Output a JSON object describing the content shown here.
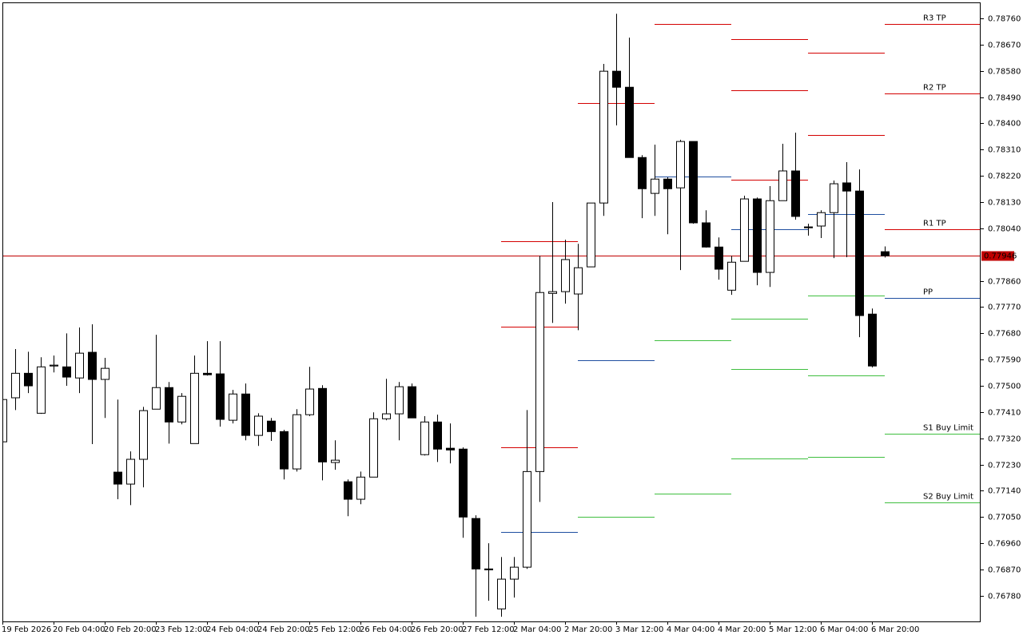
{
  "chart_data": {
    "type": "candlestick",
    "categories": [
      "19 Feb 2026",
      null,
      null,
      null,
      "20 Feb 04:00",
      null,
      null,
      null,
      "20 Feb 20:00",
      null,
      null,
      null,
      "23 Feb 12:00",
      null,
      null,
      null,
      "24 Feb 04:00",
      null,
      null,
      null,
      "24 Feb 20:00",
      null,
      null,
      null,
      "25 Feb 12:00",
      null,
      null,
      null,
      "26 Feb 04:00",
      null,
      null,
      null,
      "26 Feb 20:00",
      null,
      null,
      null,
      "27 Feb 12:00",
      null,
      null,
      null,
      "2 Mar 04:00",
      null,
      null,
      null,
      "2 Mar 20:00",
      null,
      null,
      null,
      "3 Mar 12:00",
      null,
      null,
      null,
      "4 Mar 04:00",
      null,
      null,
      null,
      "4 Mar 20:00",
      null,
      null,
      null,
      "5 Mar 12:00",
      null,
      null,
      null,
      "6 Mar 04:00",
      null,
      null,
      null,
      "6 Mar 20:00",
      null
    ],
    "open": [
      0.77308,
      0.77459,
      0.77543,
      0.77406,
      0.77568,
      0.77565,
      0.77527,
      0.77615,
      0.77522,
      0.77204,
      0.77163,
      0.77248,
      0.7742,
      0.77494,
      0.77376,
      0.77302,
      0.77543,
      0.77541,
      0.77382,
      0.77472,
      0.7733,
      0.77379,
      0.77343,
      0.77215,
      0.77401,
      0.77491,
      0.77237,
      0.77171,
      0.77111,
      0.77187,
      0.77387,
      0.77404,
      0.77497,
      0.77264,
      0.77376,
      0.77286,
      0.77283,
      0.77045,
      0.76872,
      0.76735,
      0.76837,
      0.76878,
      0.77206,
      0.77817,
      0.77823,
      0.77815,
      0.77908,
      0.78127,
      0.78579,
      0.78524,
      0.78283,
      0.7816,
      0.78209,
      0.78179,
      0.78338,
      0.78059,
      0.77976,
      0.77828,
      0.77927,
      0.78141,
      0.77889,
      0.78135,
      0.78237,
      0.78045,
      0.78048,
      0.78094,
      0.78196,
      0.78168,
      0.77746,
      0.7796
    ],
    "high": [
      0.7748,
      0.77626,
      0.77617,
      0.77598,
      0.77604,
      0.7768,
      0.777,
      0.77711,
      0.77596,
      0.77453,
      0.77275,
      0.77428,
      0.77675,
      0.77513,
      0.77475,
      0.77604,
      0.77653,
      0.77653,
      0.77486,
      0.77508,
      0.77406,
      0.7739,
      0.77349,
      0.7742,
      0.77565,
      0.77502,
      0.77313,
      0.77179,
      0.77206,
      0.77409,
      0.77524,
      0.77513,
      0.77508,
      0.77396,
      0.77401,
      0.77371,
      0.77289,
      0.77056,
      0.7696,
      0.76913,
      0.76913,
      0.77417,
      0.77946,
      0.7813,
      0.78001,
      0.77987,
      0.78127,
      0.78604,
      0.78776,
      0.78694,
      0.78291,
      0.78327,
      0.78215,
      0.78344,
      0.78338,
      0.78102,
      0.78009,
      0.77946,
      0.78152,
      0.78146,
      0.78185,
      0.7833,
      0.78368,
      0.78056,
      0.78102,
      0.78204,
      0.78267,
      0.78242,
      0.77765,
      0.77978
    ],
    "low": [
      0.77275,
      0.77417,
      0.77475,
      0.77404,
      0.77546,
      0.775,
      0.77475,
      0.773,
      0.7739,
      0.77111,
      0.77091,
      0.77152,
      0.7742,
      0.77302,
      0.77368,
      0.77302,
      0.77535,
      0.7736,
      0.77371,
      0.77313,
      0.77294,
      0.77311,
      0.77179,
      0.77206,
      0.77396,
      0.77176,
      0.77212,
      0.77053,
      0.77094,
      0.77187,
      0.77382,
      0.77313,
      0.7739,
      0.77261,
      0.77239,
      0.77234,
      0.76979,
      0.76708,
      0.76763,
      0.76708,
      0.76774,
      0.76872,
      0.77102,
      0.77716,
      0.77782,
      0.77691,
      0.77908,
      0.78083,
      0.78393,
      0.78283,
      0.78075,
      0.78083,
      0.7802,
      0.77897,
      0.78056,
      0.77974,
      0.77864,
      0.77812,
      0.77927,
      0.77845,
      0.77839,
      0.78135,
      0.7807,
      0.78015,
      0.78007,
      0.77938,
      0.77941,
      0.77667,
      0.77563,
      0.7794
    ],
    "close": [
      0.77453,
      0.77543,
      0.775,
      0.77565,
      0.77571,
      0.7753,
      0.77612,
      0.77522,
      0.7756,
      0.77163,
      0.77248,
      0.77415,
      0.77494,
      0.77376,
      0.77464,
      0.77543,
      0.77538,
      0.77385,
      0.77472,
      0.7733,
      0.77396,
      0.77343,
      0.77215,
      0.77401,
      0.77489,
      0.77239,
      0.77245,
      0.77111,
      0.77187,
      0.77387,
      0.77404,
      0.77497,
      0.7739,
      0.77376,
      0.77283,
      0.7728,
      0.7705,
      0.76872,
      0.76869,
      0.76837,
      0.76878,
      0.77206,
      0.7782,
      0.77823,
      0.77933,
      0.77905,
      0.78127,
      0.78579,
      0.78524,
      0.78283,
      0.78176,
      0.78209,
      0.78176,
      0.78338,
      0.78059,
      0.77976,
      0.779,
      0.77924,
      0.78141,
      0.77889,
      0.78135,
      0.78237,
      0.78081,
      0.78042,
      0.78094,
      0.78193,
      0.78168,
      0.77741,
      0.77568,
      0.77946
    ],
    "up_color": "#ffffff",
    "down_color": "#000000",
    "ylim": [
      0.76692,
      0.78815
    ],
    "yticks": [
      {
        "value": 0.7876,
        "label": "0.78760"
      },
      {
        "value": 0.7867,
        "label": "0.78670"
      },
      {
        "value": 0.7858,
        "label": "0.78580"
      },
      {
        "value": 0.7849,
        "label": "0.78490"
      },
      {
        "value": 0.784,
        "label": "0.78400"
      },
      {
        "value": 0.7831,
        "label": "0.78310"
      },
      {
        "value": 0.7822,
        "label": "0.78220"
      },
      {
        "value": 0.7813,
        "label": "0.78130"
      },
      {
        "value": 0.7804,
        "label": "0.78040"
      },
      {
        "value": 0.7786,
        "label": "0.77860"
      },
      {
        "value": 0.7777,
        "label": "0.77770"
      },
      {
        "value": 0.7768,
        "label": "0.77680"
      },
      {
        "value": 0.7759,
        "label": "0.77590"
      },
      {
        "value": 0.775,
        "label": "0.77500"
      },
      {
        "value": 0.7741,
        "label": "0.77410"
      },
      {
        "value": 0.7732,
        "label": "0.77320"
      },
      {
        "value": 0.7723,
        "label": "0.77230"
      },
      {
        "value": 0.7714,
        "label": "0.77140"
      },
      {
        "value": 0.7705,
        "label": "0.77050"
      },
      {
        "value": 0.7696,
        "label": "0.76960"
      },
      {
        "value": 0.7687,
        "label": "0.76870"
      },
      {
        "value": 0.7678,
        "label": "0.76780"
      }
    ],
    "last_price": 0.77946,
    "last_price_color": "#c00000",
    "pivots": [
      {
        "from": 39,
        "to": 45,
        "lines": [
          {
            "value": 0.77996,
            "color": "#d40000"
          },
          {
            "value": 0.77702,
            "color": "#d40000"
          },
          {
            "value": 0.77289,
            "color": "#d40000"
          },
          {
            "value": 0.76998,
            "color": "#1f4fa0"
          }
        ]
      },
      {
        "from": 45,
        "to": 51,
        "lines": [
          {
            "value": 0.7847,
            "color": "#d40000"
          },
          {
            "value": 0.77587,
            "color": "#1f4fa0"
          },
          {
            "value": 0.7705,
            "color": "#3fbf3f"
          }
        ]
      },
      {
        "from": 51,
        "to": 57,
        "lines": [
          {
            "value": 0.78741,
            "color": "#d40000"
          },
          {
            "value": 0.78218,
            "color": "#1f4fa0"
          },
          {
            "value": 0.77656,
            "color": "#3fbf3f"
          },
          {
            "value": 0.7713,
            "color": "#3fbf3f"
          }
        ]
      },
      {
        "from": 57,
        "to": 63,
        "lines": [
          {
            "value": 0.78689,
            "color": "#d40000"
          },
          {
            "value": 0.78513,
            "color": "#d40000"
          },
          {
            "value": 0.78207,
            "color": "#d40000"
          },
          {
            "value": 0.78037,
            "color": "#1f4fa0"
          },
          {
            "value": 0.7773,
            "color": "#3fbf3f"
          },
          {
            "value": 0.77557,
            "color": "#3fbf3f"
          },
          {
            "value": 0.7725,
            "color": "#3fbf3f"
          }
        ]
      },
      {
        "from": 63,
        "to": 69,
        "lines": [
          {
            "value": 0.78642,
            "color": "#d40000"
          },
          {
            "value": 0.7836,
            "color": "#d40000"
          },
          {
            "value": 0.78089,
            "color": "#1f4fa0"
          },
          {
            "value": 0.77809,
            "color": "#3fbf3f"
          },
          {
            "value": 0.77535,
            "color": "#3fbf3f"
          },
          {
            "value": 0.77256,
            "color": "#3fbf3f"
          }
        ]
      },
      {
        "from": 69,
        "lines": [
          {
            "value": 0.78741,
            "color": "#d40000",
            "label": "R3 TP"
          },
          {
            "value": 0.78502,
            "color": "#d40000",
            "label": "R2 TP"
          },
          {
            "value": 0.78037,
            "color": "#d40000",
            "label": "R1 TP"
          },
          {
            "value": 0.77801,
            "color": "#1f4fa0",
            "label": "PP"
          },
          {
            "value": 0.77335,
            "color": "#3fbf3f",
            "label": "S1 Buy Limit"
          },
          {
            "value": 0.771,
            "color": "#3fbf3f",
            "label": "S2 Buy Limit"
          }
        ]
      }
    ]
  }
}
